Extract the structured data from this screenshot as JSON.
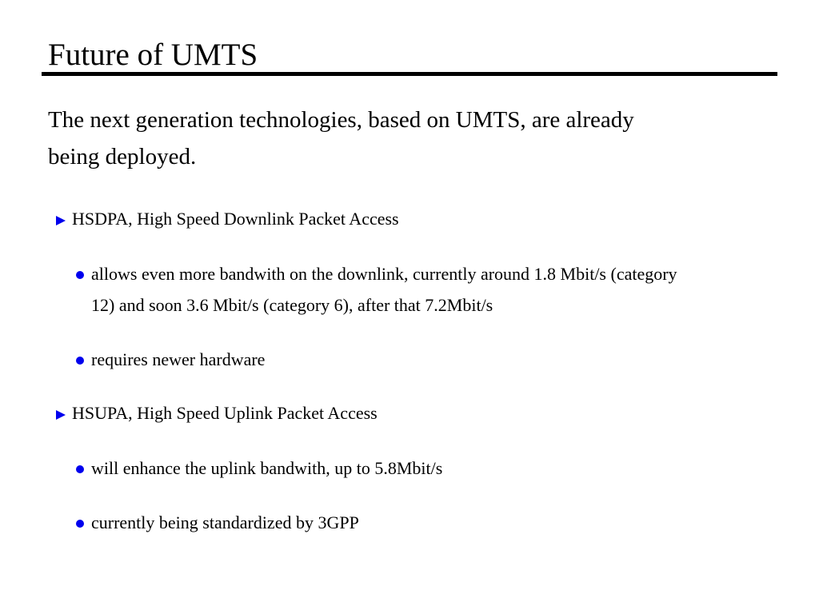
{
  "title": "Future of UMTS",
  "intro": [
    "The next generation technologies, based on UMTS, are already",
    "being deployed."
  ],
  "bullet_color": "#0000ee",
  "sections": [
    {
      "label": "HSDPA, High Speed Downlink Packet Access",
      "items": [
        [
          "allows even more bandwith on the downlink, currently around 1.8 Mbit/s (category",
          "12) and soon 3.6 Mbit/s (category 6), after that 7.2Mbit/s"
        ],
        [
          "requires newer hardware"
        ]
      ]
    },
    {
      "label": "HSUPA, High Speed Uplink Packet Access",
      "items": [
        [
          "will enhance the uplink bandwith, up to 5.8Mbit/s"
        ],
        [
          "currently being standardized by 3GPP"
        ]
      ]
    }
  ]
}
